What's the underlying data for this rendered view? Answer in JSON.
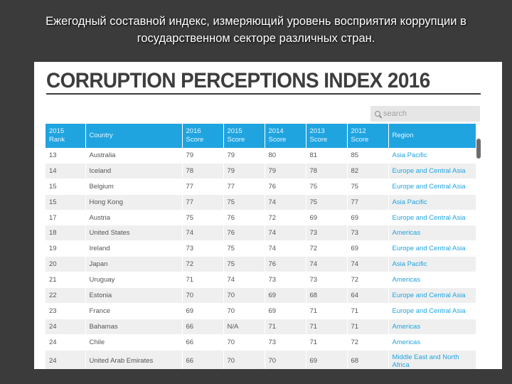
{
  "caption": {
    "line1": "Ежегодный составной индекс, измеряющий уровень восприятия коррупции в",
    "line2": "государственном секторе различных стран."
  },
  "panel": {
    "title": "CORRUPTION PERCEPTIONS INDEX 2016",
    "search_placeholder": "search",
    "search_icon": "magnifier"
  },
  "table": {
    "headers": [
      [
        "2015",
        "Rank"
      ],
      [
        "Country",
        ""
      ],
      [
        "2016",
        "Score"
      ],
      [
        "2015",
        "Score"
      ],
      [
        "2014",
        "Score"
      ],
      [
        "2013",
        "Score"
      ],
      [
        "2012",
        "Score"
      ],
      [
        "Region",
        ""
      ]
    ],
    "rows": [
      [
        "13",
        "Australia",
        "79",
        "79",
        "80",
        "81",
        "85",
        "Asia Pacific"
      ],
      [
        "14",
        "Iceland",
        "78",
        "79",
        "79",
        "78",
        "82",
        "Europe and Central Asia"
      ],
      [
        "15",
        "Belgium",
        "77",
        "77",
        "76",
        "75",
        "75",
        "Europe and Central Asia"
      ],
      [
        "15",
        "Hong Kong",
        "77",
        "75",
        "74",
        "75",
        "77",
        "Asia Pacific"
      ],
      [
        "17",
        "Austria",
        "75",
        "76",
        "72",
        "69",
        "69",
        "Europe and Central Asia"
      ],
      [
        "18",
        "United States",
        "74",
        "76",
        "74",
        "73",
        "73",
        "Americas"
      ],
      [
        "19",
        "Ireland",
        "73",
        "75",
        "74",
        "72",
        "69",
        "Europe and Central Asia"
      ],
      [
        "20",
        "Japan",
        "72",
        "75",
        "76",
        "74",
        "74",
        "Asia Pacific"
      ],
      [
        "21",
        "Uruguay",
        "71",
        "74",
        "73",
        "73",
        "72",
        "Americas"
      ],
      [
        "22",
        "Estonia",
        "70",
        "70",
        "69",
        "68",
        "64",
        "Europe and Central Asia"
      ],
      [
        "23",
        "France",
        "69",
        "70",
        "69",
        "71",
        "71",
        "Europe and Central Asia"
      ],
      [
        "24",
        "Bahamas",
        "66",
        "N/A",
        "71",
        "71",
        "71",
        "Americas"
      ],
      [
        "24",
        "Chile",
        "66",
        "70",
        "73",
        "71",
        "72",
        "Americas"
      ],
      [
        "24",
        "United Arab Emirates",
        "66",
        "70",
        "70",
        "69",
        "68",
        "Middle East and North Africa"
      ]
    ]
  },
  "colors": {
    "header_blue": "#1fa4e0",
    "region_link": "#1fa4e0",
    "slide_background": "#3b3b3b"
  }
}
